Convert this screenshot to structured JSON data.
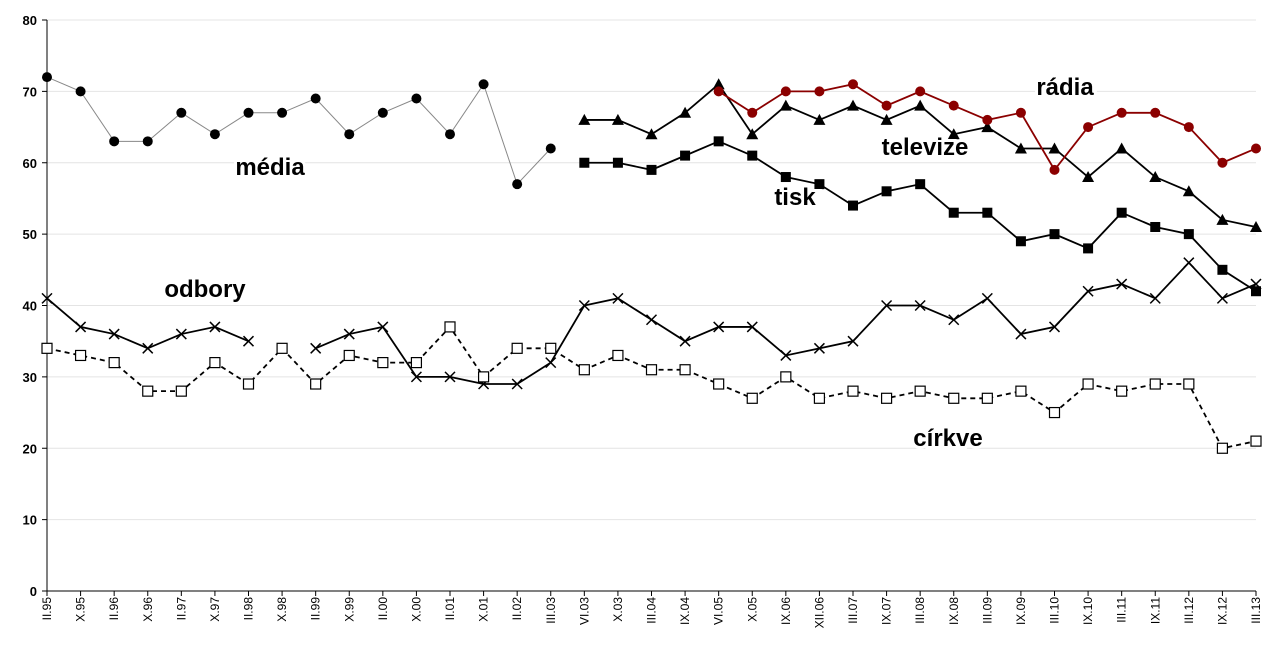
{
  "chart_data": {
    "type": "line",
    "categories": [
      "II.95",
      "X.95",
      "II.96",
      "X.96",
      "II.97",
      "X.97",
      "II.98",
      "X.98",
      "II.99",
      "X.99",
      "II.00",
      "X.00",
      "II.01",
      "X.01",
      "II.02",
      "III.03",
      "VI.03",
      "X.03",
      "III.04",
      "IX.04",
      "VI.05",
      "X.05",
      "IX.06",
      "XII.06",
      "III.07",
      "IX.07",
      "III.08",
      "IX.08",
      "III.09",
      "IX.09",
      "III.10",
      "IX.10",
      "III.11",
      "IX.11",
      "III.12",
      "IX.12",
      "III.13"
    ],
    "series": [
      {
        "name": "média",
        "color": "#000000",
        "marker": "circle",
        "line_color": "#888888",
        "values": [
          72,
          70,
          63,
          63,
          67,
          64,
          67,
          67,
          69,
          64,
          67,
          69,
          64,
          71,
          57,
          62,
          null,
          null,
          null,
          null,
          null,
          null,
          null,
          null,
          null,
          null,
          null,
          null,
          null,
          null,
          null,
          null,
          null,
          null,
          null,
          null,
          null
        ]
      },
      {
        "name": "televize",
        "color": "#000000",
        "marker": "triangle",
        "values": [
          null,
          null,
          null,
          null,
          null,
          null,
          null,
          null,
          null,
          null,
          null,
          null,
          null,
          null,
          null,
          null,
          66,
          66,
          64,
          67,
          71,
          64,
          68,
          66,
          68,
          66,
          68,
          64,
          65,
          62,
          62,
          58,
          62,
          58,
          56,
          52,
          51
        ]
      },
      {
        "name": "tisk",
        "color": "#000000",
        "marker": "square",
        "values": [
          null,
          null,
          null,
          null,
          null,
          null,
          null,
          null,
          null,
          null,
          null,
          null,
          null,
          null,
          null,
          null,
          60,
          60,
          59,
          61,
          63,
          61,
          58,
          57,
          54,
          56,
          57,
          53,
          53,
          49,
          50,
          48,
          53,
          51,
          50,
          45,
          42
        ]
      },
      {
        "name": "rádia",
        "color": "#8b0000",
        "marker": "circle",
        "values": [
          null,
          null,
          null,
          null,
          null,
          null,
          null,
          null,
          null,
          null,
          null,
          null,
          null,
          null,
          null,
          null,
          null,
          null,
          null,
          null,
          70,
          67,
          70,
          70,
          71,
          68,
          70,
          68,
          66,
          67,
          59,
          65,
          67,
          67,
          65,
          60,
          62
        ]
      },
      {
        "name": "odbory",
        "color": "#000000",
        "marker": "cross",
        "values": [
          41,
          37,
          36,
          34,
          36,
          37,
          35,
          null,
          34,
          36,
          37,
          30,
          30,
          29,
          29,
          32,
          40,
          41,
          38,
          35,
          37,
          37,
          33,
          34,
          35,
          40,
          40,
          38,
          41,
          36,
          37,
          42,
          43,
          41,
          46,
          41,
          43
        ]
      },
      {
        "name": "církve",
        "color": "#000000",
        "marker": "open-square",
        "line_style": "dashed",
        "values": [
          34,
          33,
          32,
          28,
          28,
          32,
          29,
          34,
          29,
          33,
          32,
          32,
          37,
          30,
          34,
          34,
          31,
          33,
          31,
          31,
          29,
          27,
          30,
          27,
          28,
          27,
          28,
          27,
          27,
          28,
          25,
          29,
          28,
          29,
          29,
          20,
          21
        ]
      }
    ],
    "ylim": [
      0,
      80
    ],
    "yticks": [
      0,
      10,
      20,
      30,
      40,
      50,
      60,
      70,
      80
    ],
    "grid": true
  }
}
